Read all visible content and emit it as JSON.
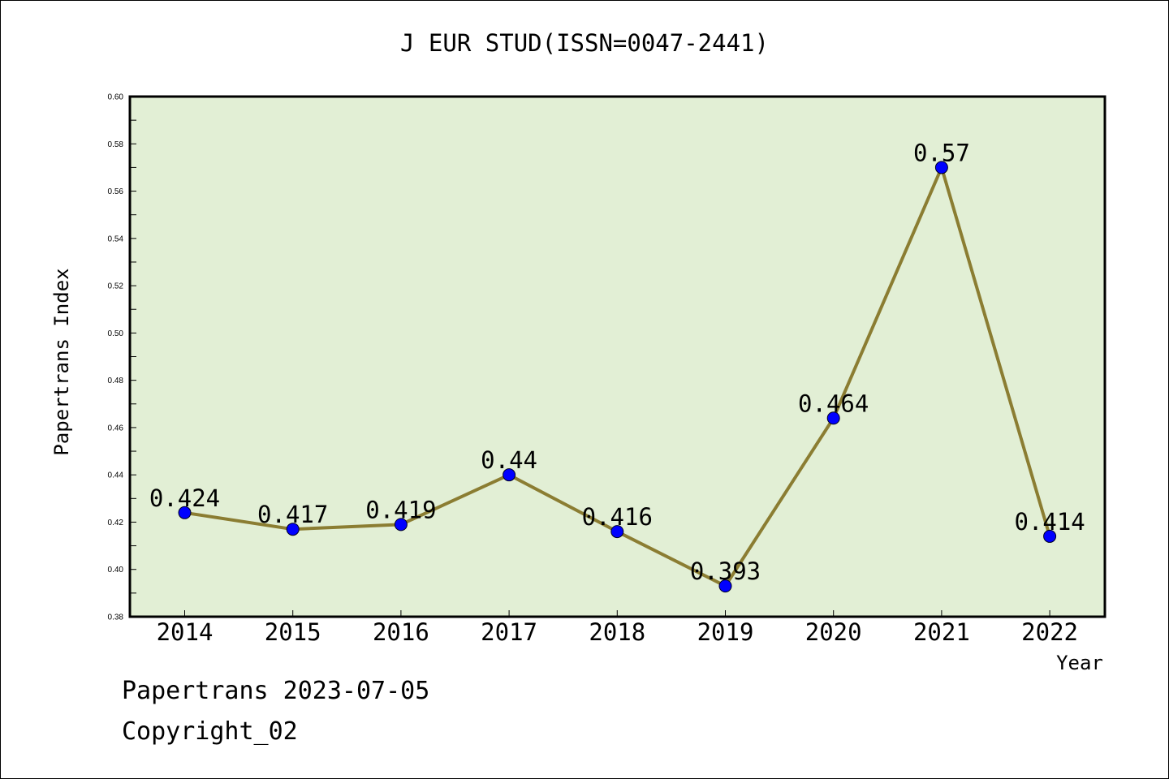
{
  "chart_data": {
    "type": "line",
    "title": "J EUR STUD(ISSN=0047-2441)",
    "xlabel": "Year",
    "ylabel": "Papertrans Index",
    "categories": [
      "2014",
      "2015",
      "2016",
      "2017",
      "2018",
      "2019",
      "2020",
      "2021",
      "2022"
    ],
    "series": [
      {
        "values": [
          0.424,
          0.417,
          0.419,
          0.44,
          0.416,
          0.393,
          0.464,
          0.57,
          0.414
        ],
        "labels": [
          "0.424",
          "0.417",
          "0.419",
          "0.44",
          "0.416",
          "0.393",
          "0.464",
          "0.57",
          "0.414"
        ]
      }
    ],
    "ylim": [
      0.38,
      0.6
    ],
    "yticks": [
      "0.38",
      "0.40",
      "0.42",
      "0.44",
      "0.46",
      "0.48",
      "0.50",
      "0.52",
      "0.54",
      "0.56",
      "0.58",
      "0.60"
    ],
    "grid": false,
    "colors": {
      "plot_background": "#e2efd5",
      "line": "#8b7d32",
      "marker": "#0000ff",
      "frame": "#000000"
    }
  },
  "footer": {
    "line1": "Papertrans 2023-07-05",
    "line2": "Copyright_02"
  }
}
